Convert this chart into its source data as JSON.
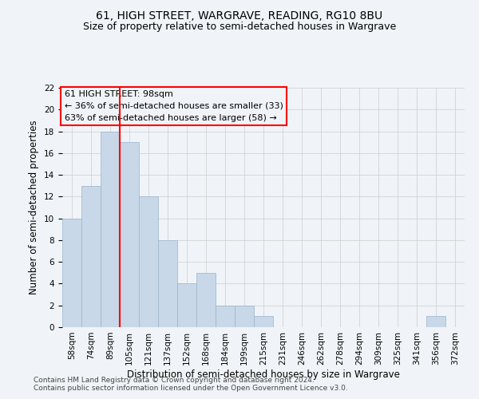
{
  "title": "61, HIGH STREET, WARGRAVE, READING, RG10 8BU",
  "subtitle": "Size of property relative to semi-detached houses in Wargrave",
  "xlabel": "Distribution of semi-detached houses by size in Wargrave",
  "ylabel": "Number of semi-detached properties",
  "bar_labels": [
    "58sqm",
    "74sqm",
    "89sqm",
    "105sqm",
    "121sqm",
    "137sqm",
    "152sqm",
    "168sqm",
    "184sqm",
    "199sqm",
    "215sqm",
    "231sqm",
    "246sqm",
    "262sqm",
    "278sqm",
    "294sqm",
    "309sqm",
    "325sqm",
    "341sqm",
    "356sqm",
    "372sqm"
  ],
  "bar_values": [
    10,
    13,
    18,
    17,
    12,
    8,
    4,
    5,
    2,
    2,
    1,
    0,
    0,
    0,
    0,
    0,
    0,
    0,
    0,
    1,
    0
  ],
  "bar_color": "#c8d8e8",
  "bar_edgecolor": "#9ab4cc",
  "grid_color": "#cccccc",
  "vline_color": "red",
  "vline_position": 2.5,
  "annotation_text": "61 HIGH STREET: 98sqm\n← 36% of semi-detached houses are smaller (33)\n63% of semi-detached houses are larger (58) →",
  "annotation_box_edgecolor": "red",
  "ylim": [
    0,
    22
  ],
  "yticks": [
    0,
    2,
    4,
    6,
    8,
    10,
    12,
    14,
    16,
    18,
    20,
    22
  ],
  "footer1": "Contains HM Land Registry data © Crown copyright and database right 2024.",
  "footer2": "Contains public sector information licensed under the Open Government Licence v3.0.",
  "background_color": "#f0f4f8",
  "title_fontsize": 10,
  "subtitle_fontsize": 9,
  "axis_label_fontsize": 8.5,
  "tick_fontsize": 7.5,
  "annotation_fontsize": 8,
  "footer_fontsize": 6.5
}
